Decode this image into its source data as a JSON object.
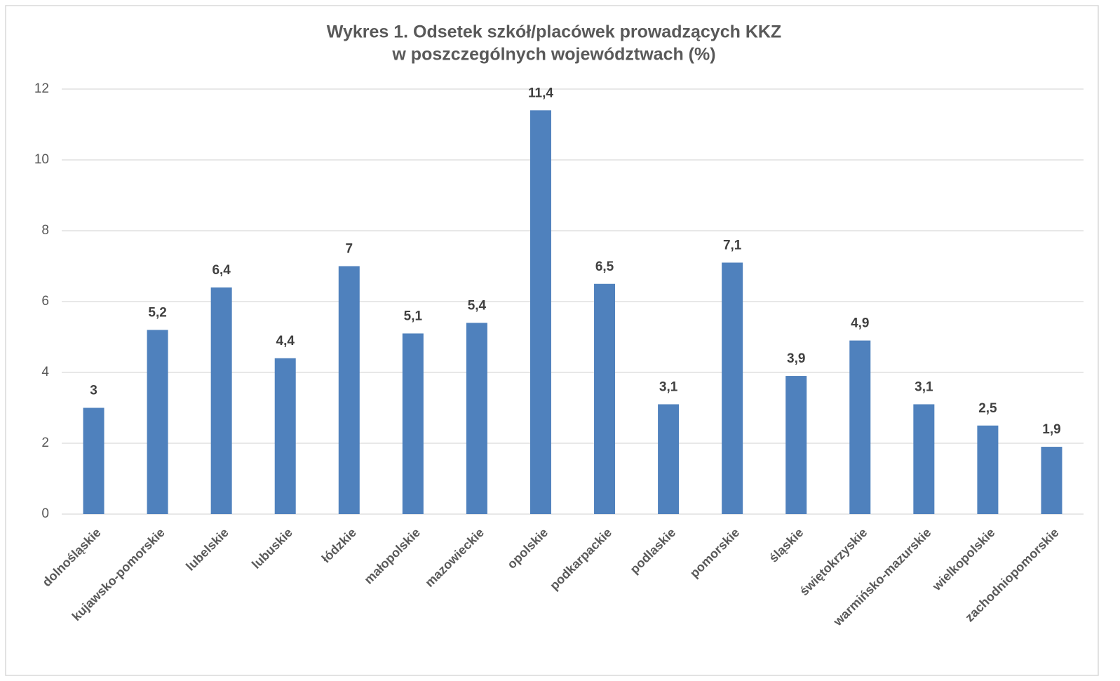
{
  "chart_data": {
    "type": "bar",
    "title": [
      "Wykres 1. Odsetek szkół/placówek prowadzących KKZ",
      "w poszczególnych województwach (%)"
    ],
    "categories": [
      "dolnośląskie",
      "kujawsko-pomorskie",
      "lubelskie",
      "lubuskie",
      "łódzkie",
      "małopolskie",
      "mazowieckie",
      "opolskie",
      "podkarpackie",
      "podlaskie",
      "pomorskie",
      "śląskie",
      "świętokrzyskie",
      "warmińsko-mazurskie",
      "wielkopolskie",
      "zachodniopomorskie"
    ],
    "values": [
      3,
      5.2,
      6.4,
      4.4,
      7,
      5.1,
      5.4,
      11.4,
      6.5,
      3.1,
      7.1,
      3.9,
      4.9,
      3.1,
      2.5,
      1.9
    ],
    "value_labels": [
      "3",
      "5,2",
      "6,4",
      "4,4",
      "7",
      "5,1",
      "5,4",
      "11,4",
      "6,5",
      "3,1",
      "7,1",
      "3,9",
      "4,9",
      "3,1",
      "2,5",
      "1,9"
    ],
    "color": "#4f81bd",
    "ylim": [
      0,
      12
    ],
    "yticks": [
      0,
      2,
      4,
      6,
      8,
      10,
      12
    ],
    "grid": true
  }
}
